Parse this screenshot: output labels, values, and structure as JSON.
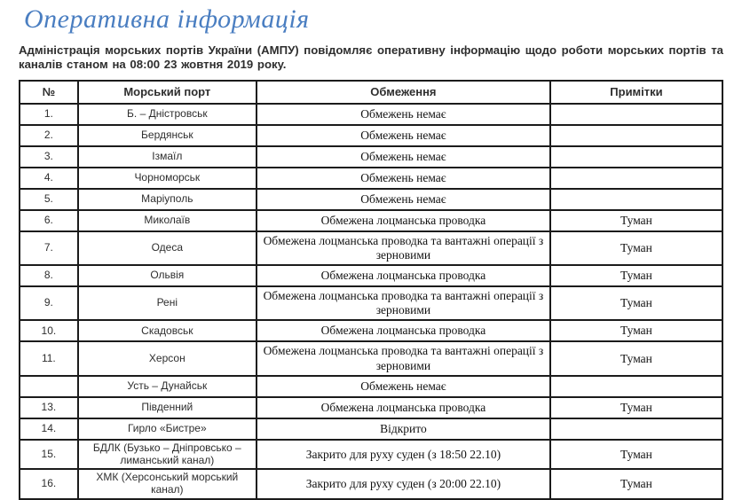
{
  "header": {
    "title": "Оперативна інформація"
  },
  "intro": {
    "text": "Адміністрація морських портів України (АМПУ) повідомляє оперативну інформацію щодо роботи морських портів та каналів станом на 08:00 23 жовтня 2019 року."
  },
  "table": {
    "headers": {
      "num": "№",
      "port": "Морський порт",
      "restriction": "Обмеження",
      "notes": "Примітки"
    },
    "rows": [
      {
        "num": "1.",
        "port": "Б. – Дністровськ",
        "restriction": "Обмежень немає",
        "note": ""
      },
      {
        "num": "2.",
        "port": "Бердянськ",
        "restriction": "Обмежень немає",
        "note": ""
      },
      {
        "num": "3.",
        "port": "Ізмаїл",
        "restriction": "Обмежень немає",
        "note": ""
      },
      {
        "num": "4.",
        "port": "Чорноморськ",
        "restriction": "Обмежень немає",
        "note": ""
      },
      {
        "num": "5.",
        "port": "Маріуполь",
        "restriction": "Обмежень немає",
        "note": ""
      },
      {
        "num": "6.",
        "port": "Миколаїв",
        "restriction": "Обмежена лоцманська проводка",
        "note": "Туман"
      },
      {
        "num": "7.",
        "port": "Одеса",
        "restriction": "Обмежена лоцманська проводка та вантажні операції з зерновими",
        "note": "Туман"
      },
      {
        "num": "8.",
        "port": "Ольвія",
        "restriction": "Обмежена лоцманська проводка",
        "note": "Туман"
      },
      {
        "num": "9.",
        "port": "Рені",
        "restriction": "Обмежена лоцманська проводка та вантажні операції з зерновими",
        "note": "Туман"
      },
      {
        "num": "10.",
        "port": "Скадовськ",
        "restriction": "Обмежена лоцманська проводка",
        "note": "Туман"
      },
      {
        "num": "11.",
        "port": "Херсон",
        "restriction": "Обмежена лоцманська проводка та вантажні операції з зерновими",
        "note": "Туман"
      },
      {
        "num": "",
        "port": "Усть – Дунайськ",
        "restriction": "Обмежень немає",
        "note": ""
      },
      {
        "num": "13.",
        "port": "Південний",
        "restriction": "Обмежена лоцманська проводка",
        "note": "Туман"
      },
      {
        "num": "14.",
        "port": "Гирло «Бистре»",
        "restriction": "Відкрито",
        "note": ""
      },
      {
        "num": "15.",
        "port": "БДЛК (Бузько – Дніпровсько – лиманський канал)",
        "restriction": "Закрито для руху суден (з 18:50 22.10)",
        "note": "Туман"
      },
      {
        "num": "16.",
        "port": "ХМК (Херсонський морський канал)",
        "restriction": "Закрито для руху суден (з 20:00 22.10)",
        "note": "Туман"
      }
    ]
  },
  "colors": {
    "title_blue": "#4a7ec1",
    "text_dark": "#2e2e2e",
    "border": "#1b1b1b"
  }
}
